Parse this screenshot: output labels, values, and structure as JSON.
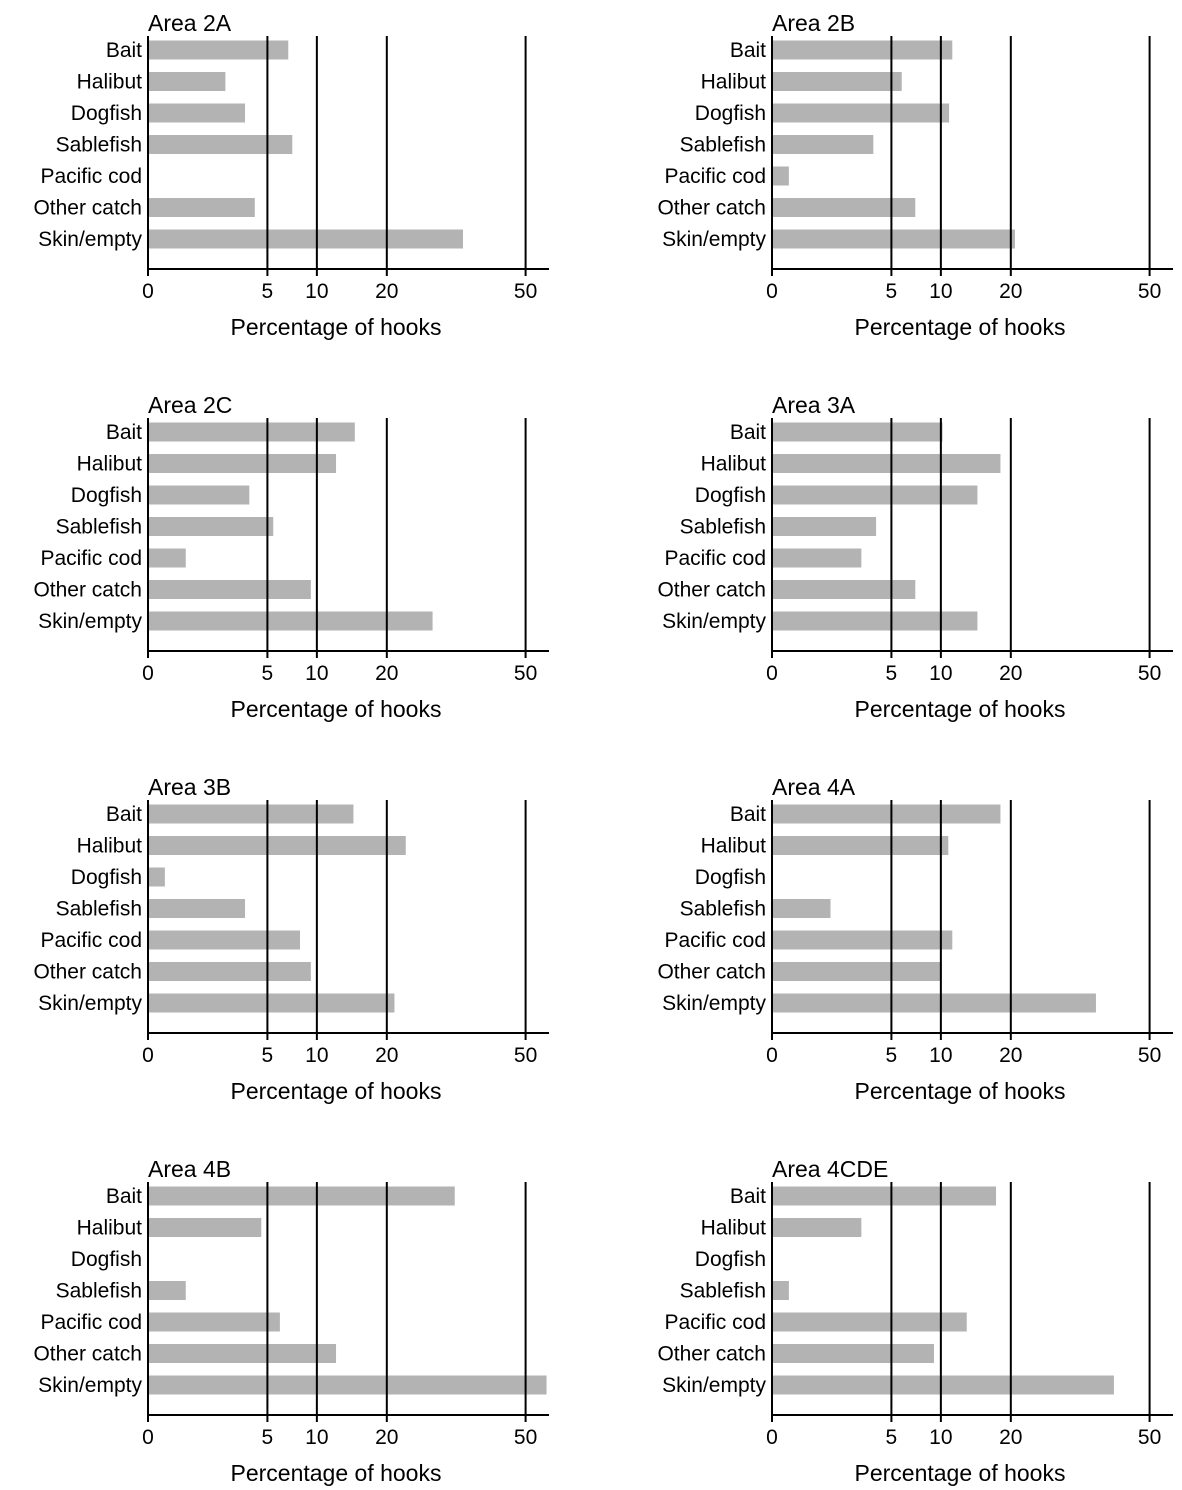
{
  "chart_data": [
    {
      "type": "bar",
      "title": "Area 2A",
      "categories": [
        "Bait",
        "Halibut",
        "Dogfish",
        "Sablefish",
        "Pacific cod",
        "Other catch",
        "Skin/empty"
      ],
      "values": [
        6.9,
        2.1,
        3.3,
        7.3,
        0,
        4.0,
        34.8
      ],
      "xlabel": "Percentage of hooks",
      "xticks": [
        0,
        5,
        10,
        20,
        50
      ],
      "xscale": "square root",
      "gridlines": [
        5,
        10,
        20,
        50
      ]
    },
    {
      "type": "bar",
      "title": "Area 2B",
      "categories": [
        "Bait",
        "Halibut",
        "Dogfish",
        "Sablefish",
        "Pacific cod",
        "Other catch",
        "Skin/empty"
      ],
      "values": [
        11.4,
        5.9,
        11.0,
        3.6,
        0.1,
        7.2,
        20.7
      ],
      "xlabel": "Percentage of hooks",
      "xticks": [
        0,
        5,
        10,
        20,
        50
      ],
      "xscale": "square root",
      "gridlines": [
        5,
        10,
        20,
        50
      ]
    },
    {
      "type": "bar",
      "title": "Area 2C",
      "categories": [
        "Bait",
        "Halibut",
        "Dogfish",
        "Sablefish",
        "Pacific cod",
        "Other catch",
        "Skin/empty"
      ],
      "values": [
        15.0,
        12.4,
        3.6,
        5.5,
        0.5,
        9.3,
        28.4
      ],
      "xlabel": "Percentage of hooks",
      "xticks": [
        0,
        5,
        10,
        20,
        50
      ],
      "xscale": "square root",
      "gridlines": [
        5,
        10,
        20,
        50
      ]
    },
    {
      "type": "bar",
      "title": "Area 3A",
      "categories": [
        "Bait",
        "Halibut",
        "Dogfish",
        "Sablefish",
        "Pacific cod",
        "Other catch",
        "Skin/empty"
      ],
      "values": [
        10.2,
        18.3,
        14.8,
        3.8,
        2.8,
        7.2,
        14.8
      ],
      "xlabel": "Percentage of hooks",
      "xticks": [
        0,
        5,
        10,
        20,
        50
      ],
      "xscale": "square root",
      "gridlines": [
        5,
        10,
        20,
        50
      ]
    },
    {
      "type": "bar",
      "title": "Area 3B",
      "categories": [
        "Bait",
        "Halibut",
        "Dogfish",
        "Sablefish",
        "Pacific cod",
        "Other catch",
        "Skin/empty"
      ],
      "values": [
        14.8,
        23.3,
        0.1,
        3.3,
        8.1,
        9.3,
        21.3
      ],
      "xlabel": "Percentage of hooks",
      "xticks": [
        0,
        5,
        10,
        20,
        50
      ],
      "xscale": "square root",
      "gridlines": [
        5,
        10,
        20,
        50
      ]
    },
    {
      "type": "bar",
      "title": "Area 4A",
      "categories": [
        "Bait",
        "Halibut",
        "Dogfish",
        "Sablefish",
        "Pacific cod",
        "Other catch",
        "Skin/empty"
      ],
      "values": [
        18.3,
        10.9,
        0,
        1.2,
        11.4,
        10.1,
        36.8
      ],
      "xlabel": "Percentage of hooks",
      "xticks": [
        0,
        5,
        10,
        20,
        50
      ],
      "xscale": "square root",
      "gridlines": [
        5,
        10,
        20,
        50
      ]
    },
    {
      "type": "bar",
      "title": "Area 4B",
      "categories": [
        "Bait",
        "Halibut",
        "Dogfish",
        "Sablefish",
        "Pacific cod",
        "Other catch",
        "Skin/empty"
      ],
      "values": [
        33.0,
        4.5,
        0,
        0.5,
        6.1,
        12.4,
        55.7
      ],
      "xlabel": "Percentage of hooks",
      "xticks": [
        0,
        5,
        10,
        20,
        50
      ],
      "xscale": "square root",
      "gridlines": [
        5,
        10,
        20,
        50
      ]
    },
    {
      "type": "bar",
      "title": "Area 4CDE",
      "categories": [
        "Bait",
        "Halibut",
        "Dogfish",
        "Sablefish",
        "Pacific cod",
        "Other catch",
        "Skin/empty"
      ],
      "values": [
        17.6,
        2.8,
        0,
        0.1,
        13.3,
        9.2,
        41.0
      ],
      "xlabel": "Percentage of hooks",
      "xticks": [
        0,
        5,
        10,
        20,
        50
      ],
      "xscale": "square root",
      "gridlines": [
        5,
        10,
        20,
        50
      ]
    }
  ],
  "colors": {
    "bar": "#b3b3b3",
    "axis": "#000000"
  }
}
